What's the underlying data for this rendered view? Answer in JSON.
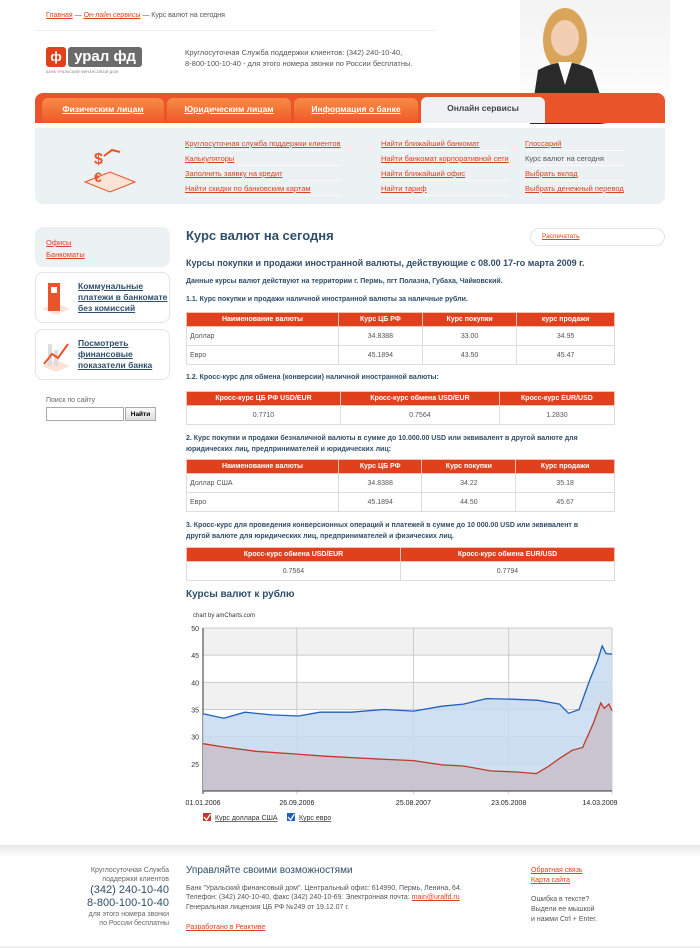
{
  "breadcrumb": {
    "items": [
      "Главная",
      "Он-лайн сервисы"
    ],
    "current": "Курс валют на сегодня",
    "separator": "—"
  },
  "logo": {
    "mark": "ф",
    "text": "урал фд",
    "tagline": "БАНК УРАЛЬСКИЙ ФИНАНСОВЫЙ ДОМ"
  },
  "header": {
    "support_line1": "Круглосуточная Служба поддержки клиентов: (342) 240-10-40,",
    "support_line2": "8-800-100-10-40 - для этого номера звонки по России бесплатны."
  },
  "nav": {
    "tabs": [
      {
        "label": "Физическим лицам"
      },
      {
        "label": "Юридическим лицам"
      },
      {
        "label": "Информация о банке"
      },
      {
        "label": "Онлайн сервисы",
        "active": true
      }
    ]
  },
  "subnav": {
    "col1": [
      "Круглосуточная служба поддержки клиентов",
      "Калькуляторы",
      "Заполнить заявку на кредит",
      "Найти скидки по банковским картам"
    ],
    "col2": [
      "Найти ближайший банкомат",
      "Найти банкомат корпоративной сети",
      "Найти ближайший офис",
      "Найти тариф"
    ],
    "col3": [
      {
        "label": "Глоссарий",
        "link": true
      },
      {
        "label": "Курс валют на сегодня",
        "link": false
      },
      {
        "label": "Выбрать вклад",
        "link": true
      },
      {
        "label": "Выбрать денежный перевод",
        "link": true
      }
    ]
  },
  "sidebar": {
    "links": [
      "Офисы",
      "Банкоматы"
    ],
    "promo1": [
      "Коммунальные",
      "платежи в банкомате",
      "без комиссий"
    ],
    "promo2": [
      "Посмотреть",
      "финансовые",
      "показатели банка"
    ],
    "search_label": "Поиск по сайту",
    "search_value": "",
    "search_button": "Найти"
  },
  "main": {
    "title": "Курс валют на сегодня",
    "print": "Распечатать",
    "subtitle": "Курсы покупки и продажи иностранной валюты, действующие с 08.00 17-го марта 2009 г.",
    "note": "Данные курсы валют действуют на территории г. Пермь, пгт Полазна, Губаха, Чайковский.",
    "s11": "1.1. Курс покупки и продажи наличной иностранной валюты за наличные рубли.",
    "t1": {
      "headers": [
        "Наименование валюты",
        "Курс ЦБ РФ",
        "Курс покупки",
        "курс продажи"
      ],
      "rows": [
        [
          "Доллар",
          "34.8388",
          "33.00",
          "34.95"
        ],
        [
          "Евро",
          "45.1894",
          "43.50",
          "45.47"
        ]
      ]
    },
    "s12": "1.2. Кросс-курс для обмена (конверсии) наличной иностранной валюты:",
    "t2": {
      "headers": [
        "Кросс-курс ЦБ РФ USD/EUR",
        "Кросс-курс обмена USD/EUR",
        "Кросс-курс EUR/USD"
      ],
      "rows": [
        [
          "0.7710",
          "0.7564",
          "1.2830"
        ]
      ]
    },
    "s2a": "2. Курс покупки и продажи безналичной валюты в сумме до 10.000.00 USD или эквивалент в другой валюте для",
    "s2b": "юридических лиц, предпринимателей и юридических лиц:",
    "t3": {
      "headers": [
        "Наименование валюты",
        "Курс ЦБ РФ",
        "Курс покупки",
        "Курс продажи"
      ],
      "rows": [
        [
          "Доллар США",
          "34.8388",
          "34.22",
          "35.18"
        ],
        [
          "Евро",
          "45.1894",
          "44.50",
          "45.67"
        ]
      ]
    },
    "s3a": "3. Кросс-курс для проведения конверсионных операций и платежей в сумме до 10 000.00 USD или эквивалент в",
    "s3b": "другой валюте для юридических лиц, предпринимателей и физических лиц.",
    "t4": {
      "headers": [
        "Кросс-курс обмена USD/EUR",
        "Кросс-курс обмена EUR/USD"
      ],
      "rows": [
        [
          "0.7564",
          "0.7794"
        ]
      ]
    },
    "chart_title": "Курсы валют к рублю"
  },
  "chart_data": {
    "type": "area",
    "credit": "chart by amCharts.com",
    "ylim": [
      20,
      50
    ],
    "yticks": [
      25,
      30,
      35,
      40,
      45,
      50
    ],
    "xlim": [
      "2006-01-01",
      "2009-03-14"
    ],
    "xticks": [
      "01.01.2006",
      "26.09.2006",
      "25.08.2007",
      "23.05.2008",
      "14.03.2009"
    ],
    "grid": true,
    "legend": "bottom-left",
    "series": [
      {
        "name": "Курс евро",
        "color": "#1f5fbf",
        "fill": "#c5dbef",
        "points": [
          [
            "2006-01-01",
            34.2
          ],
          [
            "2006-03-01",
            33.4
          ],
          [
            "2006-05-01",
            34.5
          ],
          [
            "2006-07-15",
            34.0
          ],
          [
            "2006-10-01",
            33.8
          ],
          [
            "2006-12-01",
            34.5
          ],
          [
            "2007-03-01",
            34.5
          ],
          [
            "2007-06-01",
            35.0
          ],
          [
            "2007-08-25",
            34.7
          ],
          [
            "2007-11-15",
            35.6
          ],
          [
            "2008-01-15",
            36.0
          ],
          [
            "2008-03-20",
            37.0
          ],
          [
            "2008-06-01",
            36.9
          ],
          [
            "2008-08-15",
            36.7
          ],
          [
            "2008-10-15",
            36.0
          ],
          [
            "2008-11-10",
            34.3
          ],
          [
            "2008-12-10",
            35.0
          ],
          [
            "2009-01-10",
            40.5
          ],
          [
            "2009-02-01",
            44.0
          ],
          [
            "2009-02-14",
            46.7
          ],
          [
            "2009-02-25",
            45.3
          ],
          [
            "2009-03-14",
            45.2
          ]
        ]
      },
      {
        "name": "Курс доллара США",
        "color": "#c0392b",
        "fill": "#c8bfca",
        "points": [
          [
            "2006-01-01",
            28.7
          ],
          [
            "2006-03-01",
            28.1
          ],
          [
            "2006-06-01",
            27.3
          ],
          [
            "2006-09-26",
            26.8
          ],
          [
            "2006-12-15",
            26.4
          ],
          [
            "2007-03-15",
            26.1
          ],
          [
            "2007-06-15",
            25.8
          ],
          [
            "2007-08-25",
            25.6
          ],
          [
            "2007-11-15",
            24.8
          ],
          [
            "2008-01-15",
            24.6
          ],
          [
            "2008-04-01",
            23.7
          ],
          [
            "2008-06-15",
            23.5
          ],
          [
            "2008-08-10",
            23.2
          ],
          [
            "2008-09-15",
            24.6
          ],
          [
            "2008-10-15",
            26.0
          ],
          [
            "2008-11-20",
            27.5
          ],
          [
            "2008-12-20",
            28.0
          ],
          [
            "2009-01-20",
            32.5
          ],
          [
            "2009-02-10",
            36.2
          ],
          [
            "2009-02-20",
            35.2
          ],
          [
            "2009-03-05",
            36.0
          ],
          [
            "2009-03-14",
            34.8
          ]
        ]
      }
    ]
  },
  "footer": {
    "support_label": [
      "Круглосуточная Служба",
      "поддержки клиентов"
    ],
    "phone1": "(342) 240-10-40",
    "phone2": "8-800-100-10-40",
    "free_note": [
      "для этого номера звонки",
      "по России бесплатны"
    ],
    "title": "Управляйте своими возможностями",
    "addr1": "Банк \"Уральский финансовый дом\". Центральный офис: 614990, Пермь, Ленина, 64.",
    "addr2": "Телефон: (342) 240-10-40, факс (342) 240-10-69. Электронная почта: ",
    "email": "main@uralfd.ru",
    "license": "Генеральная лицензия ЦБ РФ №249 от 19.12.07 г.",
    "dev": "Разработано в Реактиве",
    "feedback": "Обратная связь",
    "sitemap": "Карта сайта",
    "typo": [
      "Ошибка в тексте?",
      "Выдели ее мышкой",
      "и нажми Ctrl + Enter."
    ]
  }
}
